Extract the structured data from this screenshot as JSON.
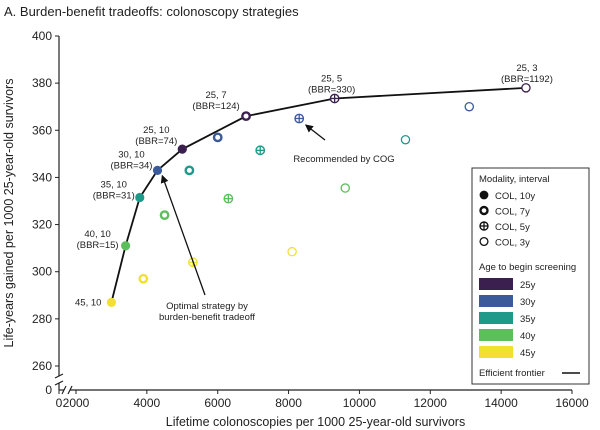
{
  "chart_data": {
    "type": "scatter",
    "title": "A. Burden-benefit tradeoffs: colonoscopy strategies",
    "xlabel": "Lifetime colonoscopies per 1000 25-year-old survivors",
    "ylabel": "Life-years gained per 1000 25-year-old survivors",
    "xlim": [
      0,
      16000
    ],
    "ylim": [
      250,
      400
    ],
    "y_axis_break": true,
    "x_axis_break": true,
    "xticks": [
      "0",
      "2000",
      "4000",
      "6000",
      "8000",
      "10000",
      "12000",
      "14000",
      "16000"
    ],
    "yticks": [
      "260",
      "280",
      "300",
      "320",
      "340",
      "360",
      "380",
      "400"
    ],
    "grid": false,
    "legend_position": "right",
    "colors": {
      "25y": "#3b1f4e",
      "30y": "#3a5a9a",
      "35y": "#1f9a8a",
      "40y": "#5cbf5c",
      "45y": "#f2e030",
      "frontier": "#111111",
      "label_text": "#222222"
    },
    "series": [
      {
        "name": "25y",
        "color": "#3b1f4e",
        "points": [
          {
            "x": 5000,
            "y": 352,
            "marker": "10y",
            "label": "25, 10\n(BBR=74)",
            "arrow": false
          },
          {
            "x": 6800,
            "y": 366,
            "marker": "7y",
            "label": "25, 7\n(BBR=124)",
            "arrow": false
          },
          {
            "x": 9300,
            "y": 373.5,
            "marker": "5y",
            "label": "25, 5\n(BBR=330)",
            "arrow": false
          },
          {
            "x": 14700,
            "y": 378,
            "marker": "3y",
            "label": "25, 3\n(BBR=1192)",
            "arrow": false
          }
        ]
      },
      {
        "name": "30y",
        "color": "#3a5a9a",
        "points": [
          {
            "x": 4300,
            "y": 343,
            "marker": "10y",
            "label": "30, 10\n(BBR=34)",
            "arrow": false
          },
          {
            "x": 6000,
            "y": 357,
            "marker": "7y",
            "label": "",
            "arrow": false
          },
          {
            "x": 8300,
            "y": 365,
            "marker": "5y",
            "label": "",
            "arrow": false
          },
          {
            "x": 13100,
            "y": 370,
            "marker": "3y",
            "label": "",
            "arrow": false
          }
        ]
      },
      {
        "name": "35y",
        "color": "#1f9a8a",
        "points": [
          {
            "x": 3800,
            "y": 331.5,
            "marker": "10y",
            "label": "35, 10\n(BBR=31)",
            "arrow": false
          },
          {
            "x": 5200,
            "y": 343,
            "marker": "7y",
            "label": "",
            "arrow": false
          },
          {
            "x": 7200,
            "y": 351.5,
            "marker": "5y",
            "label": "",
            "arrow": false
          },
          {
            "x": 11300,
            "y": 356,
            "marker": "3y",
            "label": "",
            "arrow": false
          }
        ]
      },
      {
        "name": "40y",
        "color": "#5cbf5c",
        "points": [
          {
            "x": 3400,
            "y": 311,
            "marker": "10y",
            "label": "40, 10\n(BBR=15)",
            "arrow": false
          },
          {
            "x": 4500,
            "y": 324,
            "marker": "7y",
            "label": "",
            "arrow": false
          },
          {
            "x": 6300,
            "y": 331,
            "marker": "5y",
            "label": "",
            "arrow": false
          },
          {
            "x": 9600,
            "y": 335.5,
            "marker": "3y",
            "label": "",
            "arrow": false
          }
        ]
      },
      {
        "name": "45y",
        "color": "#f2e030",
        "points": [
          {
            "x": 3000,
            "y": 287,
            "marker": "10y",
            "label": "45, 10",
            "arrow": false
          },
          {
            "x": 3900,
            "y": 297,
            "marker": "7y",
            "label": "",
            "arrow": false
          },
          {
            "x": 5300,
            "y": 304,
            "marker": "5y",
            "label": "",
            "arrow": false
          },
          {
            "x": 8100,
            "y": 308.5,
            "marker": "3y",
            "label": "",
            "arrow": false
          }
        ]
      }
    ],
    "frontier": {
      "name": "Efficient frontier",
      "points": [
        [
          3000,
          287
        ],
        [
          3400,
          311
        ],
        [
          3800,
          331.5
        ],
        [
          4300,
          343
        ],
        [
          5000,
          352
        ],
        [
          6800,
          366
        ],
        [
          9300,
          373.5
        ],
        [
          14700,
          378
        ]
      ]
    },
    "annotations": [
      {
        "text": "Optimal strategy by\nburden-benefit tradeoff",
        "point": [
          4350,
          342
        ],
        "anchor": "Optimal"
      },
      {
        "text": "Recommended by COG",
        "point": [
          8400,
          363.5
        ],
        "anchor": "COG"
      }
    ],
    "legend": {
      "modality_title": "Modality, interval",
      "modality_items": [
        {
          "key": "10y",
          "label": "COL, 10y"
        },
        {
          "key": "7y",
          "label": "COL, 7y"
        },
        {
          "key": "5y",
          "label": "COL, 5y"
        },
        {
          "key": "3y",
          "label": "COL, 3y"
        }
      ],
      "age_title": "Age to begin screening",
      "age_items": [
        {
          "label": "25y",
          "color": "#3b1f4e"
        },
        {
          "label": "30y",
          "color": "#3a5a9a"
        },
        {
          "label": "35y",
          "color": "#1f9a8a"
        },
        {
          "label": "40y",
          "color": "#5cbf5c"
        },
        {
          "label": "45y",
          "color": "#f2e030"
        }
      ],
      "frontier_label": "Efficient frontier"
    }
  }
}
